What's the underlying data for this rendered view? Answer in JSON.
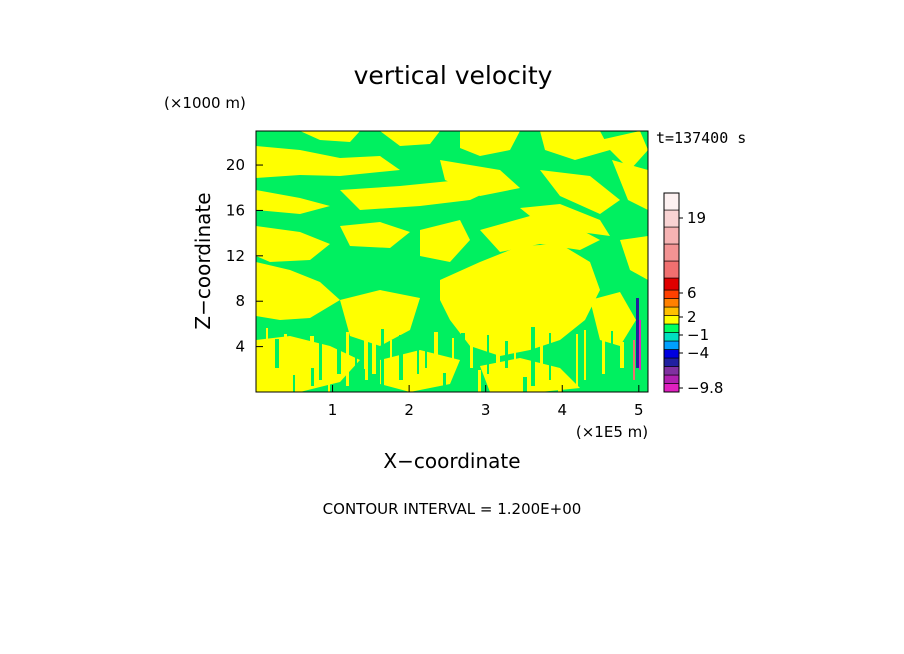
{
  "chart_data": {
    "type": "heatmap",
    "title": "vertical velocity",
    "xlabel": "X−coordinate",
    "ylabel": "Z−coordinate",
    "x_unit_label": "(×1E5 m)",
    "y_unit_label": "(×1000 m)",
    "time_label": "t=137400 s",
    "contour_label": "CONTOUR INTERVAL = 1.200E+00",
    "xlim": [
      0,
      5.12
    ],
    "ylim": [
      0,
      23
    ],
    "x_ticks": [
      {
        "value": 1,
        "label": "1"
      },
      {
        "value": 2,
        "label": "2"
      },
      {
        "value": 3,
        "label": "3"
      },
      {
        "value": 4,
        "label": "4"
      },
      {
        "value": 5,
        "label": "5"
      }
    ],
    "y_ticks": [
      {
        "value": 4,
        "label": "4"
      },
      {
        "value": 8,
        "label": "8"
      },
      {
        "value": 12,
        "label": "12"
      },
      {
        "value": 16,
        "label": "16"
      },
      {
        "value": 20,
        "label": "20"
      }
    ],
    "field_colors": {
      "positive": "#ffff00",
      "near_zero": "#00f060"
    },
    "colorbar": {
      "levels": [
        {
          "color": "#e020c0"
        },
        {
          "color": "#b020b0"
        },
        {
          "color": "#8030a0"
        },
        {
          "color": "#2020a0"
        },
        {
          "color": "#0000e0"
        },
        {
          "color": "#00a0ff"
        },
        {
          "color": "#00e0c0"
        },
        {
          "color": "#00ff60"
        },
        {
          "color": "#ffff00"
        },
        {
          "color": "#ffc000"
        },
        {
          "color": "#ff8000"
        },
        {
          "color": "#ff4000"
        },
        {
          "color": "#e00000"
        },
        {
          "color": "#f07070"
        },
        {
          "color": "#f39393"
        },
        {
          "color": "#f6b3b3"
        },
        {
          "color": "#f9d3d3"
        },
        {
          "color": "#fdf1f1"
        }
      ],
      "labels": [
        {
          "text": "19",
          "value": 19
        },
        {
          "text": "6",
          "value": 6
        },
        {
          "text": "2",
          "value": 2
        },
        {
          "text": "−1",
          "value": -1
        },
        {
          "text": "−4",
          "value": -4
        },
        {
          "text": "−9.8",
          "value": -9.8
        }
      ]
    }
  }
}
